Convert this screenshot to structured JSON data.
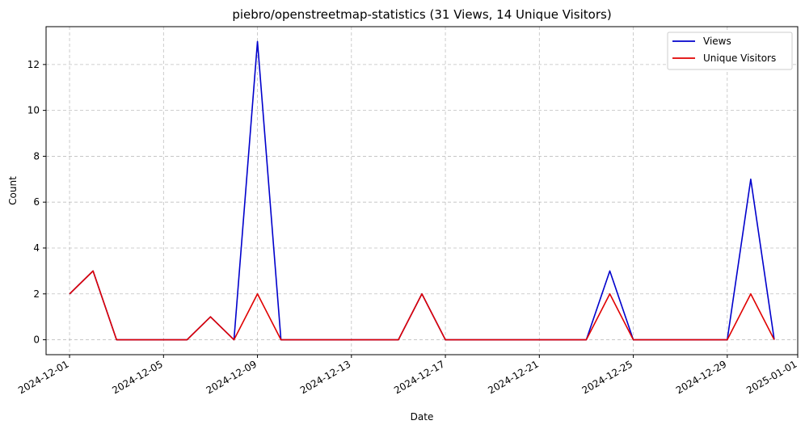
{
  "chart_data": {
    "type": "line",
    "title": "piebro/openstreetmap-statistics (31 Views, 14 Unique Visitors)",
    "xlabel": "Date",
    "ylabel": "Count",
    "x": [
      "2024-12-01",
      "2024-12-02",
      "2024-12-03",
      "2024-12-04",
      "2024-12-05",
      "2024-12-06",
      "2024-12-07",
      "2024-12-08",
      "2024-12-09",
      "2024-12-10",
      "2024-12-11",
      "2024-12-12",
      "2024-12-13",
      "2024-12-14",
      "2024-12-15",
      "2024-12-16",
      "2024-12-17",
      "2024-12-18",
      "2024-12-19",
      "2024-12-20",
      "2024-12-21",
      "2024-12-22",
      "2024-12-23",
      "2024-12-24",
      "2024-12-25",
      "2024-12-26",
      "2024-12-27",
      "2024-12-28",
      "2024-12-29",
      "2024-12-30",
      "2024-12-31"
    ],
    "xlim": [
      "2024-11-30",
      "2025-01-01"
    ],
    "ylim": [
      -0.65,
      13.65
    ],
    "xticks": [
      "2024-12-01",
      "2024-12-05",
      "2024-12-09",
      "2024-12-13",
      "2024-12-17",
      "2024-12-21",
      "2024-12-25",
      "2024-12-29",
      "2025-01-01"
    ],
    "yticks": [
      0,
      2,
      4,
      6,
      8,
      10,
      12
    ],
    "grid": true,
    "legend_position": "top-right",
    "series": [
      {
        "name": "Views",
        "color": "#0000cc",
        "values": [
          2,
          3,
          0,
          0,
          0,
          0,
          1,
          0,
          13,
          0,
          0,
          0,
          0,
          0,
          0,
          2,
          0,
          0,
          0,
          0,
          0,
          0,
          0,
          3,
          0,
          0,
          0,
          0,
          0,
          7,
          0
        ]
      },
      {
        "name": "Unique Visitors",
        "color": "#e00000",
        "values": [
          2,
          3,
          0,
          0,
          0,
          0,
          1,
          0,
          2,
          0,
          0,
          0,
          0,
          0,
          0,
          2,
          0,
          0,
          0,
          0,
          0,
          0,
          0,
          2,
          0,
          0,
          0,
          0,
          0,
          2,
          0
        ]
      }
    ]
  }
}
